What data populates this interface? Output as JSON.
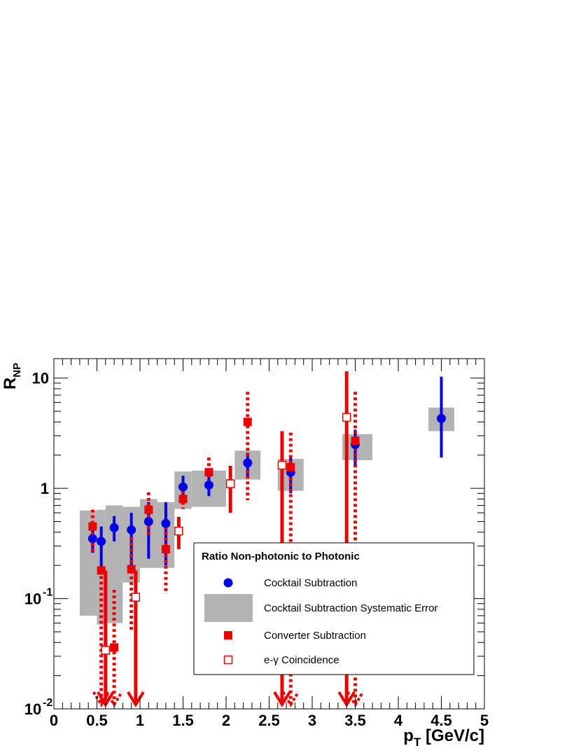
{
  "chart_data": {
    "type": "scatter",
    "xlabel": "p_T [GeV/c]",
    "ylabel": "R_NP",
    "xlim": [
      0,
      5
    ],
    "ylim": [
      0.01,
      15
    ],
    "yscale": "log",
    "grid": false,
    "x_tick_labels": [
      "0",
      "0.5",
      "1",
      "1.5",
      "2",
      "2.5",
      "3",
      "3.5",
      "4",
      "4.5",
      "5"
    ],
    "y_tick_labels": [
      {
        "value": 0.01,
        "base": "10",
        "exp": "-2"
      },
      {
        "value": 0.1,
        "base": "10",
        "exp": "-1"
      },
      {
        "value": 1,
        "base": "1",
        "exp": ""
      },
      {
        "value": 10,
        "base": "10",
        "exp": ""
      }
    ],
    "legend": {
      "title": "Ratio Non-photonic to Photonic",
      "placement": "bottom-right",
      "entries": [
        {
          "label": "Cocktail Subtraction",
          "marker": "circle",
          "color": "#0000ee"
        },
        {
          "label": "Cocktail Subtraction Systematic Error",
          "marker": "box",
          "color": "#b3b3b3"
        },
        {
          "label": "Converter Subtraction",
          "marker": "square",
          "color": "#ee0000"
        },
        {
          "label": "e-γ Coincidence",
          "marker": "open-square",
          "color": "#ee0000"
        }
      ]
    },
    "series": [
      {
        "name": "Cocktail Subtraction",
        "color": "#0000ee",
        "marker": "circle",
        "points": [
          {
            "x": 0.45,
            "y": 0.35,
            "ylo": 0.26,
            "yhi": 0.46
          },
          {
            "x": 0.55,
            "y": 0.33,
            "ylo": 0.19,
            "yhi": 0.45
          },
          {
            "x": 0.7,
            "y": 0.44,
            "ylo": 0.33,
            "yhi": 0.56
          },
          {
            "x": 0.9,
            "y": 0.42,
            "ylo": 0.2,
            "yhi": 0.6
          },
          {
            "x": 1.1,
            "y": 0.5,
            "ylo": 0.23,
            "yhi": 0.75
          },
          {
            "x": 1.3,
            "y": 0.48,
            "ylo": 0.2,
            "yhi": 0.75
          },
          {
            "x": 1.5,
            "y": 1.03,
            "ylo": 0.8,
            "yhi": 1.3
          },
          {
            "x": 1.8,
            "y": 1.07,
            "ylo": 0.85,
            "yhi": 1.3
          },
          {
            "x": 2.25,
            "y": 1.7,
            "ylo": 1.25,
            "yhi": 2.1
          },
          {
            "x": 2.75,
            "y": 1.4,
            "ylo": 0.9,
            "yhi": 1.9
          },
          {
            "x": 3.5,
            "y": 2.5,
            "ylo": 1.6,
            "yhi": 3.4
          },
          {
            "x": 4.5,
            "y": 4.3,
            "ylo": 1.9,
            "yhi": 10.3
          }
        ]
      },
      {
        "name": "Cocktail Subtraction Systematic Error",
        "color": "#b3b3b3",
        "marker": "box",
        "boxes": [
          {
            "x0": 0.3,
            "x1": 0.5,
            "ylo": 0.07,
            "yhi": 0.63
          },
          {
            "x0": 0.5,
            "x1": 0.6,
            "ylo": 0.058,
            "yhi": 0.64
          },
          {
            "x0": 0.6,
            "x1": 0.8,
            "ylo": 0.06,
            "yhi": 0.7
          },
          {
            "x0": 0.8,
            "x1": 1.0,
            "ylo": 0.14,
            "yhi": 0.68
          },
          {
            "x0": 1.0,
            "x1": 1.2,
            "ylo": 0.19,
            "yhi": 0.8
          },
          {
            "x0": 1.2,
            "x1": 1.4,
            "ylo": 0.19,
            "yhi": 0.75
          },
          {
            "x0": 1.4,
            "x1": 1.6,
            "ylo": 0.65,
            "yhi": 1.42
          },
          {
            "x0": 1.6,
            "x1": 2.0,
            "ylo": 0.68,
            "yhi": 1.45
          },
          {
            "x0": 2.1,
            "x1": 2.4,
            "ylo": 1.2,
            "yhi": 2.2
          },
          {
            "x0": 2.6,
            "x1": 2.9,
            "ylo": 0.95,
            "yhi": 1.85
          },
          {
            "x0": 3.35,
            "x1": 3.7,
            "ylo": 1.8,
            "yhi": 3.1
          },
          {
            "x0": 4.35,
            "x1": 4.65,
            "ylo": 3.3,
            "yhi": 5.4
          }
        ]
      },
      {
        "name": "Converter Subtraction",
        "color": "#ee0000",
        "marker": "square",
        "points": [
          {
            "x": 0.45,
            "y": 0.45,
            "ylo": 0.26,
            "yhi": 0.64,
            "line": "dotted"
          },
          {
            "x": 0.55,
            "y": 0.18,
            "ylo": 0.012,
            "yhi": 0.18,
            "upper_limit": true,
            "line": "dotted"
          },
          {
            "x": 0.7,
            "y": 0.036,
            "ylo": 0.012,
            "yhi": 0.12,
            "upper_limit": true,
            "line": "dotted"
          },
          {
            "x": 0.9,
            "y": 0.185,
            "ylo": 0.05,
            "yhi": 0.36,
            "line": "dotted"
          },
          {
            "x": 1.1,
            "y": 0.64,
            "ylo": 0.38,
            "yhi": 0.92,
            "line": "dotted"
          },
          {
            "x": 1.3,
            "y": 0.28,
            "ylo": 0.11,
            "yhi": 0.45,
            "line": "dotted"
          },
          {
            "x": 1.5,
            "y": 0.8,
            "ylo": 0.65,
            "yhi": 0.95,
            "line": "dotted"
          },
          {
            "x": 1.8,
            "y": 1.4,
            "ylo": 1.1,
            "yhi": 1.9,
            "line": "dotted"
          },
          {
            "x": 2.25,
            "y": 4.0,
            "ylo": 0.78,
            "yhi": 7.5,
            "line": "dotted"
          },
          {
            "x": 2.75,
            "y": 1.55,
            "ylo": 0.012,
            "yhi": 3.2,
            "upper_limit": true,
            "line": "dotted"
          },
          {
            "x": 3.5,
            "y": 2.7,
            "ylo": 0.012,
            "yhi": 7.5,
            "upper_limit": true,
            "line": "dotted"
          }
        ]
      },
      {
        "name": "e-γ Coincidence",
        "color": "#ee0000",
        "marker": "open-square",
        "points": [
          {
            "x": 0.6,
            "y": 0.034,
            "ylo": 0.012,
            "yhi": 0.18,
            "upper_limit": true
          },
          {
            "x": 0.95,
            "y": 0.103,
            "ylo": 0.012,
            "yhi": 0.18,
            "upper_limit": true
          },
          {
            "x": 1.45,
            "y": 0.41,
            "ylo": 0.28,
            "yhi": 0.55
          },
          {
            "x": 2.05,
            "y": 1.1,
            "ylo": 0.6,
            "yhi": 1.6
          },
          {
            "x": 2.65,
            "y": 1.62,
            "ylo": 0.012,
            "yhi": 3.3,
            "upper_limit": true
          },
          {
            "x": 3.4,
            "y": 4.4,
            "ylo": 0.012,
            "yhi": 11.5,
            "upper_limit": true
          }
        ]
      }
    ]
  }
}
